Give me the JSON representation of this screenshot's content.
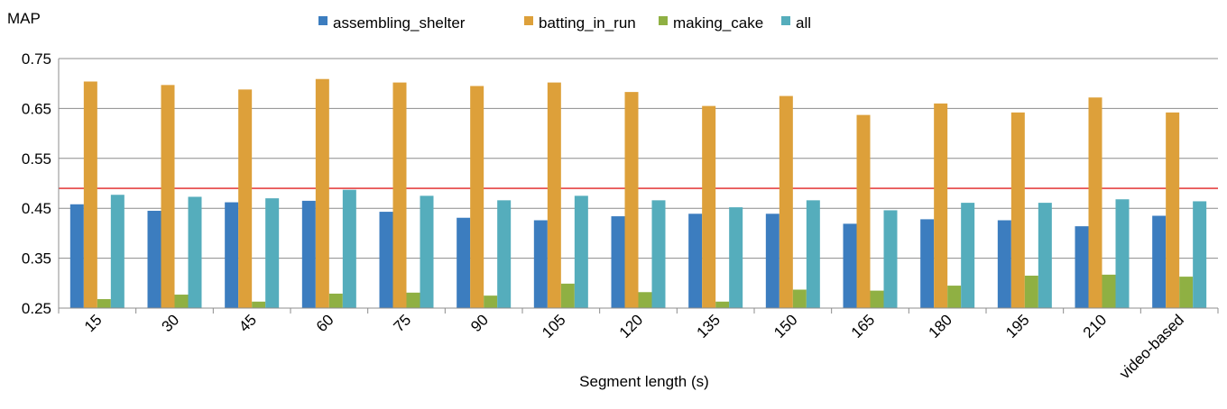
{
  "chart_data": {
    "type": "bar",
    "ylabel": "MAP",
    "xlabel": "Segment length (s)",
    "categories": [
      "15",
      "30",
      "45",
      "60",
      "75",
      "90",
      "105",
      "120",
      "135",
      "150",
      "165",
      "180",
      "195",
      "210",
      "video-based"
    ],
    "series": [
      {
        "name": "assembling_shelter",
        "color": "#3c7dbf",
        "values": [
          0.458,
          0.445,
          0.462,
          0.465,
          0.443,
          0.431,
          0.426,
          0.434,
          0.439,
          0.439,
          0.419,
          0.428,
          0.426,
          0.414,
          0.435
        ]
      },
      {
        "name": "batting_in_run",
        "color": "#dda03a",
        "values": [
          0.704,
          0.697,
          0.688,
          0.709,
          0.702,
          0.695,
          0.702,
          0.683,
          0.655,
          0.675,
          0.637,
          0.66,
          0.642,
          0.672,
          0.642
        ]
      },
      {
        "name": "making_cake",
        "color": "#8fb043",
        "values": [
          0.268,
          0.277,
          0.263,
          0.279,
          0.281,
          0.275,
          0.299,
          0.282,
          0.263,
          0.287,
          0.285,
          0.295,
          0.315,
          0.317,
          0.313
        ]
      },
      {
        "name": "all",
        "color": "#55adbc",
        "values": [
          0.477,
          0.473,
          0.47,
          0.487,
          0.475,
          0.466,
          0.475,
          0.466,
          0.452,
          0.466,
          0.446,
          0.461,
          0.461,
          0.468,
          0.464
        ]
      }
    ],
    "yticks": [
      "0.25",
      "0.35",
      "0.45",
      "0.55",
      "0.65",
      "0.75"
    ],
    "ylim": [
      0.25,
      0.75
    ],
    "reference_line": {
      "value": 0.49,
      "color": "#e02020"
    },
    "grid": true,
    "legend_position": "top"
  }
}
